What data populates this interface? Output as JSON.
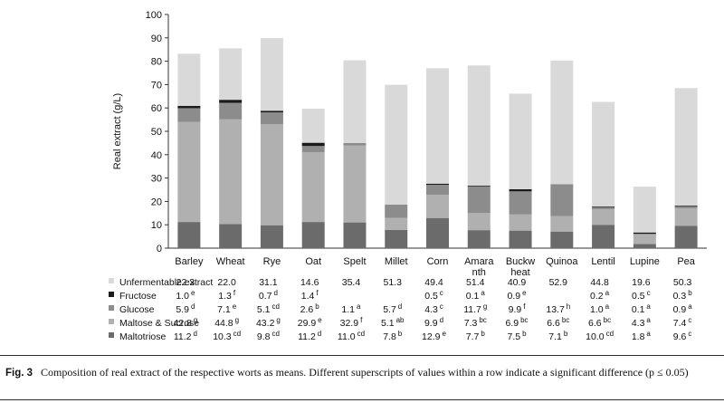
{
  "colors": {
    "Unfermentable extract": "#d9d9d9",
    "Fructose": "#1a1a1a",
    "Glucose": "#8c8c8c",
    "Maltose & Sucrose": "#b0b0b0",
    "Maltotriose": "#6b6b6b"
  },
  "chart_data": {
    "type": "bar",
    "stacked": true,
    "ylabel": "Real extract (g/L)",
    "xlabel": "",
    "ylim": [
      0,
      100
    ],
    "yticks": [
      "0",
      "10",
      "20",
      "30",
      "40",
      "50",
      "60",
      "70",
      "80",
      "90",
      "100"
    ],
    "categories": [
      "Barley",
      "Wheat",
      "Rye",
      "Oat",
      "Spelt",
      "Millet",
      "Corn",
      "Amaranth",
      "Buckwheat",
      "Quinoa",
      "Lentil",
      "Lupine",
      "Pea"
    ],
    "category_lines": [
      [
        "Barley"
      ],
      [
        "Wheat"
      ],
      [
        "Rye"
      ],
      [
        "Oat"
      ],
      [
        "Spelt"
      ],
      [
        "Millet"
      ],
      [
        "Corn"
      ],
      [
        "Amara",
        "nth"
      ],
      [
        "Buckw",
        "heat"
      ],
      [
        "Quinoa"
      ],
      [
        "Lentil"
      ],
      [
        "Lupine"
      ],
      [
        "Pea"
      ]
    ],
    "legend": "table-below",
    "series": [
      {
        "name": "Unfermentable extract",
        "values": [
          22.3,
          22.0,
          31.1,
          14.6,
          35.4,
          51.3,
          49.4,
          51.4,
          40.9,
          52.9,
          44.8,
          19.6,
          50.3
        ],
        "labels": [
          "22.3",
          "22.0",
          "31.1",
          "14.6",
          "35.4",
          "51.3",
          "49.4",
          "51.4",
          "40.9",
          "52.9",
          "44.8",
          "19.6",
          "50.3"
        ],
        "sups": [
          "",
          "",
          "",
          "",
          "",
          "",
          "",
          "",
          "",
          "",
          "",
          "",
          ""
        ]
      },
      {
        "name": "Fructose",
        "values": [
          1.0,
          1.3,
          0.7,
          1.4,
          0,
          0,
          0.5,
          0.1,
          0.9,
          0,
          0.2,
          0.5,
          0.3
        ],
        "labels": [
          "1.0",
          "1.3",
          "0.7",
          "1.4",
          "",
          "",
          "0.5",
          "0.1",
          "0.9",
          "",
          "0.2",
          "0.5",
          "0.3"
        ],
        "sups": [
          "e",
          "f",
          "d",
          "f",
          "",
          "",
          "c",
          "a",
          "e",
          "",
          "a",
          "c",
          "b"
        ]
      },
      {
        "name": "Glucose",
        "values": [
          5.9,
          7.1,
          5.1,
          2.6,
          1.1,
          5.7,
          4.3,
          11.7,
          9.9,
          13.7,
          1.0,
          0.1,
          0.9
        ],
        "labels": [
          "5.9",
          "7.1",
          "5.1",
          "2.6",
          "1.1",
          "5.7",
          "4.3",
          "11.7",
          "9.9",
          "13.7",
          "1.0",
          "0.1",
          "0.9"
        ],
        "sups": [
          "d",
          "e",
          "cd",
          "b",
          "a",
          "d",
          "c",
          "g",
          "f",
          "h",
          "a",
          "a",
          "a"
        ]
      },
      {
        "name": "Maltose & Sucrose",
        "values": [
          42.8,
          44.8,
          43.2,
          29.9,
          32.9,
          5.1,
          9.9,
          7.3,
          6.9,
          6.6,
          6.6,
          4.3,
          7.4
        ],
        "labels": [
          "42.8",
          "44.8",
          "43.2",
          "29.9",
          "32.9",
          "5.1",
          "9.9",
          "7.3",
          "6.9",
          "6.6",
          "6.6",
          "4.3",
          "7.4"
        ],
        "sups": [
          "g",
          "g",
          "g",
          "e",
          "f",
          "ab",
          "d",
          "bc",
          "bc",
          "bc",
          "bc",
          "a",
          "c"
        ]
      },
      {
        "name": "Maltotriose",
        "values": [
          11.2,
          10.3,
          9.8,
          11.2,
          11.0,
          7.8,
          12.9,
          7.7,
          7.5,
          7.1,
          10.0,
          1.8,
          9.6
        ],
        "labels": [
          "11.2",
          "10.3",
          "9.8",
          "11.2",
          "11.0",
          "7.8",
          "12.9",
          "7.7",
          "7.5",
          "7.1",
          "10.0",
          "1.8",
          "9.6"
        ],
        "sups": [
          "d",
          "cd",
          "cd",
          "d",
          "cd",
          "b",
          "e",
          "b",
          "b",
          "b",
          "cd",
          "a",
          "c"
        ]
      }
    ]
  },
  "caption": {
    "label": "Fig. 3",
    "text": "Composition of real extract of the respective worts as means. Different superscripts of values within a row indicate a significant difference (p ≤ 0.05)"
  }
}
